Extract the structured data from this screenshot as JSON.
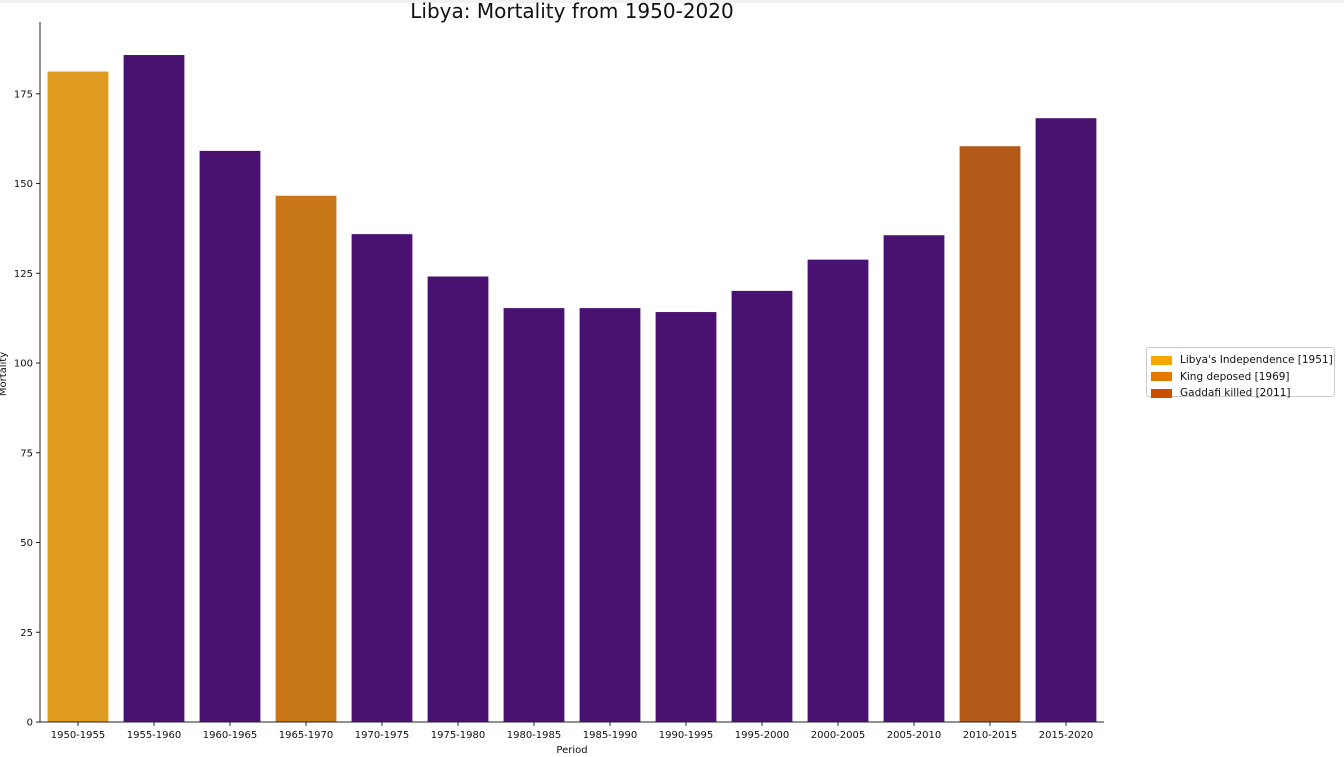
{
  "chart_data": {
    "type": "bar",
    "title": "Libya: Mortality from 1950-2020",
    "xlabel": "Period",
    "ylabel": "Mortality",
    "ylim": [
      0,
      195
    ],
    "yticks": [
      0,
      25,
      50,
      75,
      100,
      125,
      150,
      175
    ],
    "categories": [
      "1950-1955",
      "1955-1960",
      "1960-1965",
      "1965-1970",
      "1970-1975",
      "1975-1980",
      "1980-1985",
      "1985-1990",
      "1990-1995",
      "1995-2000",
      "2000-2005",
      "2005-2010",
      "2010-2015",
      "2015-2020"
    ],
    "values": [
      181.2,
      185.8,
      159.1,
      146.6,
      135.9,
      124.1,
      115.3,
      115.3,
      114.2,
      120.1,
      128.8,
      135.6,
      160.4,
      168.2
    ],
    "bar_colors": [
      "#e09c20",
      "#4a1270",
      "#4a1270",
      "#c87719",
      "#4a1270",
      "#4a1270",
      "#4a1270",
      "#4a1270",
      "#4a1270",
      "#4a1270",
      "#4a1270",
      "#4a1270",
      "#b35a18",
      "#4a1270"
    ],
    "legend": {
      "placement": "center-right",
      "entries": [
        {
          "label": "Libya's Independence [1951]",
          "color": "#f5a700"
        },
        {
          "label": "King deposed [1969]",
          "color": "#e67a00"
        },
        {
          "label": "Gaddafi killed [2011]",
          "color": "#c95000"
        }
      ]
    },
    "grid": false
  }
}
